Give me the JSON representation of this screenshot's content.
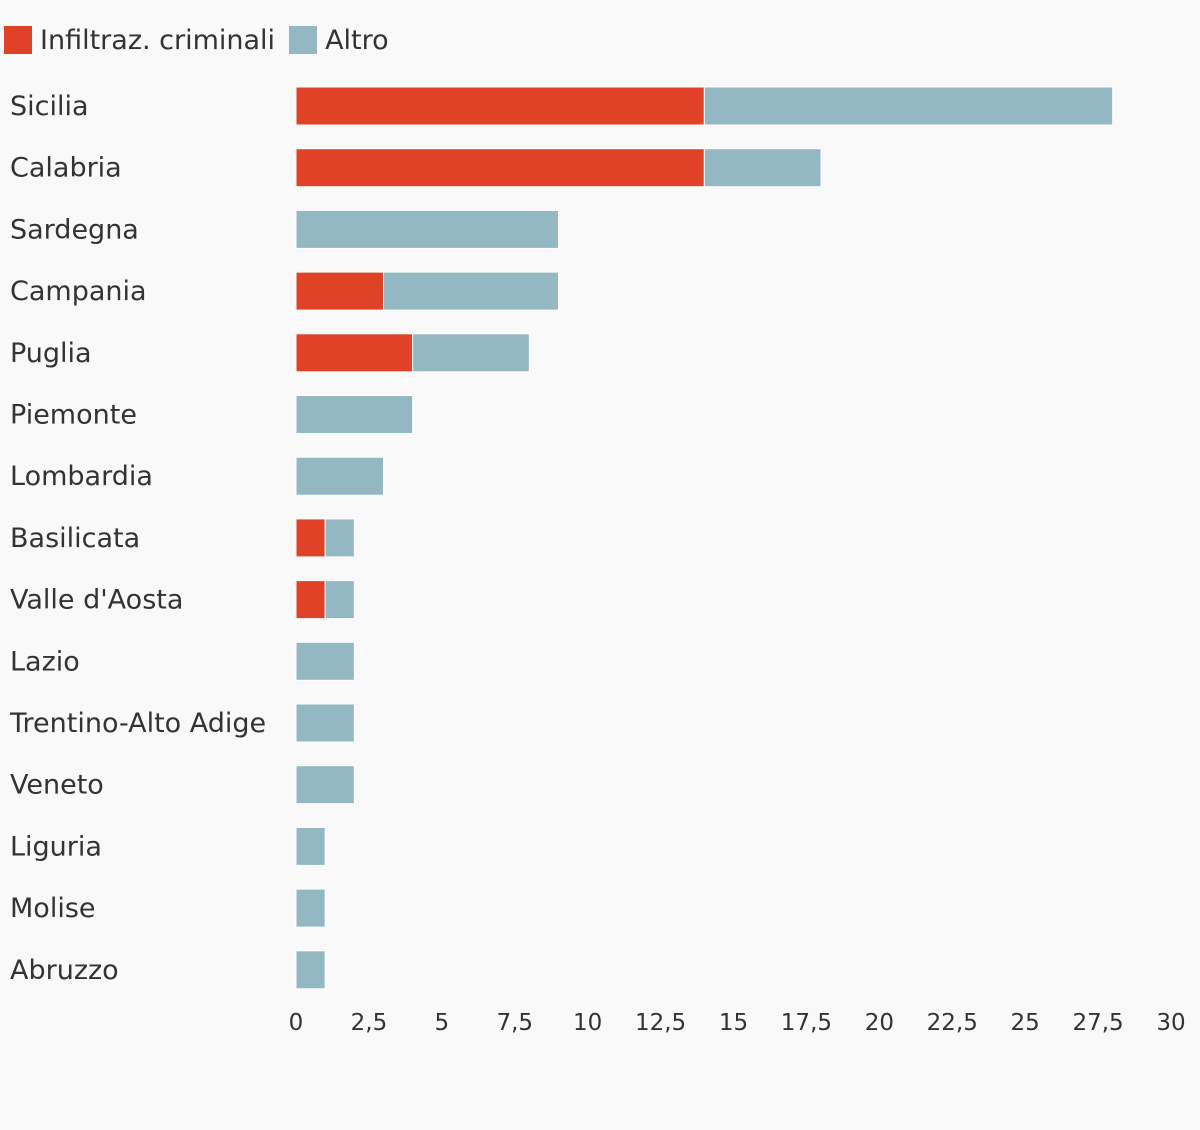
{
  "chart_data": {
    "type": "bar",
    "orientation": "horizontal",
    "stacked": true,
    "title": "",
    "xlabel": "",
    "ylabel": "",
    "legend_position": "top-left",
    "grid": false,
    "xlim": [
      0,
      30
    ],
    "x_ticks": [
      0,
      2.5,
      5,
      7.5,
      10,
      12.5,
      15,
      17.5,
      20,
      22.5,
      25,
      27.5,
      30
    ],
    "x_tick_labels": [
      "0",
      "2,5",
      "5",
      "7,5",
      "10",
      "12,5",
      "15",
      "17,5",
      "20",
      "22,5",
      "25",
      "27,5",
      "30"
    ],
    "categories": [
      "Sicilia",
      "Calabria",
      "Sardegna",
      "Campania",
      "Puglia",
      "Piemonte",
      "Lombardia",
      "Basilicata",
      "Valle d'Aosta",
      "Lazio",
      "Trentino-Alto Adige",
      "Veneto",
      "Liguria",
      "Molise",
      "Abruzzo"
    ],
    "series": [
      {
        "name": "Infiltraz. criminali",
        "color": "#df4226",
        "values": [
          14,
          14,
          0,
          3,
          4,
          0,
          0,
          1,
          1,
          0,
          0,
          0,
          0,
          0,
          0
        ]
      },
      {
        "name": "Altro",
        "color": "#94b8c3",
        "values": [
          14,
          4,
          9,
          6,
          4,
          4,
          3,
          1,
          1,
          2,
          2,
          2,
          1,
          1,
          1
        ]
      }
    ]
  }
}
